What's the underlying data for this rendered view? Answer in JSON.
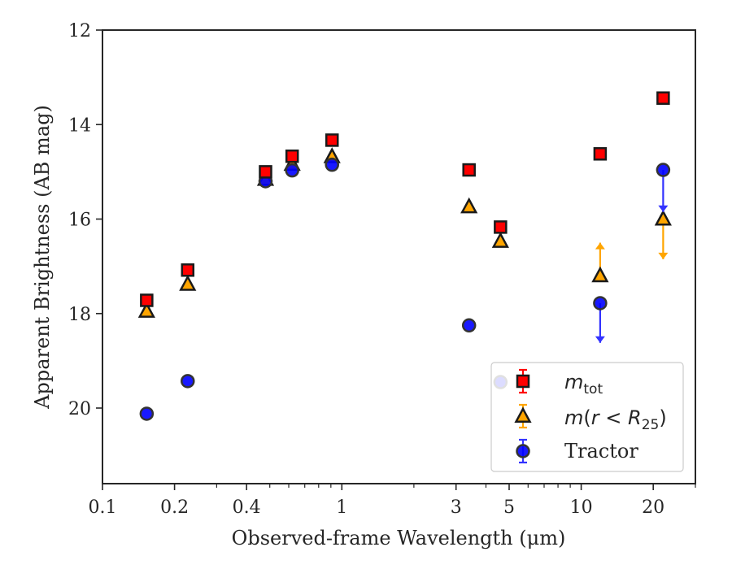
{
  "chart_data": {
    "type": "scatter",
    "title": "",
    "xlabel": "Observed-frame Wavelength (μm)",
    "ylabel": "Apparent Brightness (AB mag)",
    "xscale": "log",
    "xlim": [
      0.1,
      30
    ],
    "ylim": [
      21.6,
      12
    ],
    "y_inverted": true,
    "grid": false,
    "legend_position": "lower-right",
    "x_ticks": [
      {
        "value": 0.1,
        "label": "0.1"
      },
      {
        "value": 0.2,
        "label": "0.2"
      },
      {
        "value": 0.4,
        "label": "0.4"
      },
      {
        "value": 1,
        "label": "1"
      },
      {
        "value": 3,
        "label": "3"
      },
      {
        "value": 5,
        "label": "5"
      },
      {
        "value": 10,
        "label": "10"
      },
      {
        "value": 20,
        "label": "20"
      }
    ],
    "y_ticks": [
      {
        "value": 12,
        "label": "12"
      },
      {
        "value": 14,
        "label": "14"
      },
      {
        "value": 16,
        "label": "16"
      },
      {
        "value": 18,
        "label": "18"
      },
      {
        "value": 20,
        "label": "20"
      }
    ],
    "series": [
      {
        "key": "mtot",
        "name": "m_tot",
        "marker": "square",
        "color": "#ff0000",
        "edge": "#1a1a1a",
        "errcolor": "#ff0000",
        "points": [
          {
            "x": 0.153,
            "y": 17.72
          },
          {
            "x": 0.227,
            "y": 17.08
          },
          {
            "x": 0.48,
            "y": 15.0
          },
          {
            "x": 0.62,
            "y": 14.67
          },
          {
            "x": 0.91,
            "y": 14.33
          },
          {
            "x": 3.4,
            "y": 14.96
          },
          {
            "x": 4.6,
            "y": 16.17
          },
          {
            "x": 12.0,
            "y": 14.62
          },
          {
            "x": 22.0,
            "y": 13.44
          }
        ]
      },
      {
        "key": "r25",
        "name": "m(r < R25)",
        "marker": "triangle",
        "color": "#ffa500",
        "edge": "#1a1a1a",
        "errcolor": "#ffa500",
        "points": [
          {
            "x": 0.153,
            "y": 17.95
          },
          {
            "x": 0.227,
            "y": 17.38
          },
          {
            "x": 0.48,
            "y": 15.16
          },
          {
            "x": 0.62,
            "y": 14.84
          },
          {
            "x": 0.91,
            "y": 14.68
          },
          {
            "x": 3.4,
            "y": 15.74
          },
          {
            "x": 4.6,
            "y": 16.47
          },
          {
            "x": 12.0,
            "y": 17.2,
            "upper_limit_to": 16.5
          },
          {
            "x": 22.0,
            "y": 16.0,
            "upper_limit_to": 16.85
          }
        ]
      },
      {
        "key": "tractor",
        "name": "Tractor",
        "marker": "circle",
        "color": "#0000ff",
        "edge": "#333333",
        "errcolor": "#3333ff",
        "points": [
          {
            "x": 0.153,
            "y": 20.12
          },
          {
            "x": 0.227,
            "y": 19.43
          },
          {
            "x": 0.48,
            "y": 15.2
          },
          {
            "x": 0.62,
            "y": 14.97
          },
          {
            "x": 0.91,
            "y": 14.85
          },
          {
            "x": 3.4,
            "y": 18.25
          },
          {
            "x": 4.6,
            "y": 19.45
          },
          {
            "x": 12.0,
            "y": 17.78,
            "upper_limit_to": 18.62
          },
          {
            "x": 22.0,
            "y": 14.96,
            "upper_limit_to": 15.85
          }
        ]
      }
    ]
  }
}
